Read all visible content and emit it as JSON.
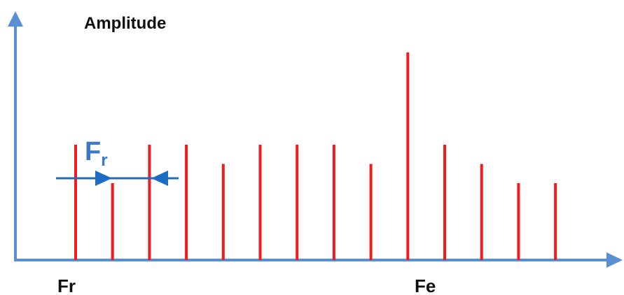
{
  "diagram": {
    "y_axis_label": "Amplitude",
    "x_label_left": "Fr",
    "x_label_right": "Fe",
    "spacing_label_main": "F",
    "spacing_label_sub": "r",
    "colors": {
      "axis": "#5b8fd4",
      "lines": "#ee1c1c",
      "spacing_arrow": "#1c6cc4",
      "spacing_label": "#3a78c8",
      "text": "#111111"
    }
  },
  "chart_data": {
    "type": "bar",
    "title": "",
    "xlabel": "",
    "ylabel": "Amplitude",
    "tick_labels": [
      "Fr",
      "Fe"
    ],
    "values": [
      3,
      2,
      3,
      3,
      2.5,
      3,
      3,
      3,
      2.5,
      5.4,
      3,
      2.5,
      2,
      2
    ]
  }
}
